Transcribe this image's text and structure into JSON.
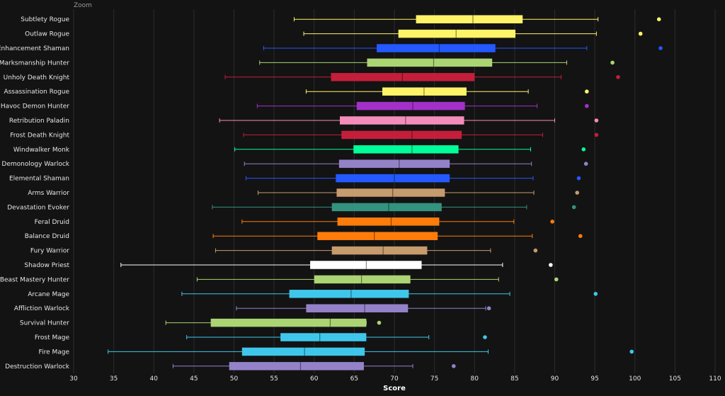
{
  "chart_data": {
    "type": "boxplot",
    "orientation": "horizontal",
    "top_label": "Zoom",
    "xlabel": "Score",
    "xlim": [
      30,
      110
    ],
    "xticks": [
      30,
      35,
      40,
      45,
      50,
      55,
      60,
      65,
      70,
      75,
      80,
      85,
      90,
      95,
      100,
      105,
      110
    ],
    "grid": "vertical",
    "categories": [
      "Subtlety Rogue",
      "Outlaw Rogue",
      "Enhancement Shaman",
      "Marksmanship Hunter",
      "Unholy Death Knight",
      "Assassination Rogue",
      "Havoc Demon Hunter",
      "Retribution Paladin",
      "Frost Death Knight",
      "Windwalker Monk",
      "Demonology Warlock",
      "Elemental Shaman",
      "Arms Warrior",
      "Devastation Evoker",
      "Feral Druid",
      "Balance Druid",
      "Fury Warrior",
      "Shadow Priest",
      "Beast Mastery Hunter",
      "Arcane Mage",
      "Affliction Warlock",
      "Survival Hunter",
      "Frost Mage",
      "Fire Mage",
      "Destruction Warlock"
    ],
    "series": [
      {
        "min": 57.5,
        "q1": 72.7,
        "median": 79.8,
        "q3": 86.0,
        "max": 95.4,
        "outlier": 103.0,
        "color": "#fff468"
      },
      {
        "min": 58.7,
        "q1": 70.5,
        "median": 77.7,
        "q3": 85.1,
        "max": 95.2,
        "outlier": 100.7,
        "color": "#fff468"
      },
      {
        "min": 53.7,
        "q1": 67.8,
        "median": 75.6,
        "q3": 82.6,
        "max": 94.0,
        "outlier": 103.2,
        "color": "#2359ff"
      },
      {
        "min": 53.2,
        "q1": 66.6,
        "median": 74.9,
        "q3": 82.2,
        "max": 91.5,
        "outlier": 97.2,
        "color": "#abd473"
      },
      {
        "min": 48.9,
        "q1": 62.1,
        "median": 71.0,
        "q3": 80.0,
        "max": 90.8,
        "outlier": 97.9,
        "color": "#c41e3a"
      },
      {
        "min": 59.0,
        "q1": 68.5,
        "median": 73.7,
        "q3": 79.0,
        "max": 86.7,
        "outlier": 94.0,
        "color": "#fff468"
      },
      {
        "min": 52.9,
        "q1": 65.3,
        "median": 72.3,
        "q3": 78.8,
        "max": 87.8,
        "outlier": 94.0,
        "color": "#a330c9"
      },
      {
        "min": 48.2,
        "q1": 63.2,
        "median": 71.4,
        "q3": 78.7,
        "max": 90.0,
        "outlier": 95.2,
        "color": "#f48cba"
      },
      {
        "min": 51.2,
        "q1": 63.4,
        "median": 72.2,
        "q3": 78.4,
        "max": 88.5,
        "outlier": 95.2,
        "color": "#c41e3a"
      },
      {
        "min": 50.1,
        "q1": 64.9,
        "median": 72.2,
        "q3": 78.0,
        "max": 87.0,
        "outlier": 93.6,
        "color": "#00ff98"
      },
      {
        "min": 51.3,
        "q1": 63.1,
        "median": 70.6,
        "q3": 76.9,
        "max": 87.1,
        "outlier": 93.9,
        "color": "#9482c9"
      },
      {
        "min": 51.5,
        "q1": 62.7,
        "median": 70.0,
        "q3": 76.9,
        "max": 87.3,
        "outlier": 93.0,
        "color": "#2359ff"
      },
      {
        "min": 53.0,
        "q1": 62.8,
        "median": 69.8,
        "q3": 76.3,
        "max": 87.4,
        "outlier": 92.8,
        "color": "#c69b6d"
      },
      {
        "min": 47.3,
        "q1": 62.2,
        "median": 69.3,
        "q3": 75.9,
        "max": 86.5,
        "outlier": 92.4,
        "color": "#33937f"
      },
      {
        "min": 51.0,
        "q1": 62.9,
        "median": 69.6,
        "q3": 75.6,
        "max": 84.9,
        "outlier": 89.7,
        "color": "#ff7c0a"
      },
      {
        "min": 47.4,
        "q1": 60.4,
        "median": 67.5,
        "q3": 75.4,
        "max": 87.2,
        "outlier": 93.2,
        "color": "#ff7c0a"
      },
      {
        "min": 47.7,
        "q1": 62.2,
        "median": 68.6,
        "q3": 74.1,
        "max": 82.0,
        "outlier": 87.6,
        "color": "#c69b6d"
      },
      {
        "min": 35.9,
        "q1": 59.5,
        "median": 66.5,
        "q3": 73.4,
        "max": 83.5,
        "outlier": 89.5,
        "color": "#ffffff"
      },
      {
        "min": 45.4,
        "q1": 60.0,
        "median": 65.9,
        "q3": 72.0,
        "max": 83.0,
        "outlier": 90.2,
        "color": "#abd473"
      },
      {
        "min": 43.5,
        "q1": 56.9,
        "median": 64.6,
        "q3": 71.8,
        "max": 84.4,
        "outlier": 95.1,
        "color": "#3fc7eb"
      },
      {
        "min": 50.3,
        "q1": 59.0,
        "median": 66.3,
        "q3": 71.7,
        "max": 81.4,
        "outlier": 81.8,
        "color": "#9482c9"
      },
      {
        "min": 41.5,
        "q1": 47.1,
        "median": 62.0,
        "q3": 66.5,
        "max": 66.5,
        "outlier": 68.1,
        "color": "#abd473"
      },
      {
        "min": 44.1,
        "q1": 55.8,
        "median": 60.7,
        "q3": 66.5,
        "max": 74.3,
        "outlier": 81.3,
        "color": "#3fc7eb"
      },
      {
        "min": 34.3,
        "q1": 51.0,
        "median": 58.8,
        "q3": 66.3,
        "max": 81.7,
        "outlier": 99.6,
        "color": "#3fc7eb"
      },
      {
        "min": 42.4,
        "q1": 49.4,
        "median": 58.3,
        "q3": 66.2,
        "max": 72.3,
        "outlier": 77.4,
        "color": "#9482c9"
      }
    ]
  }
}
